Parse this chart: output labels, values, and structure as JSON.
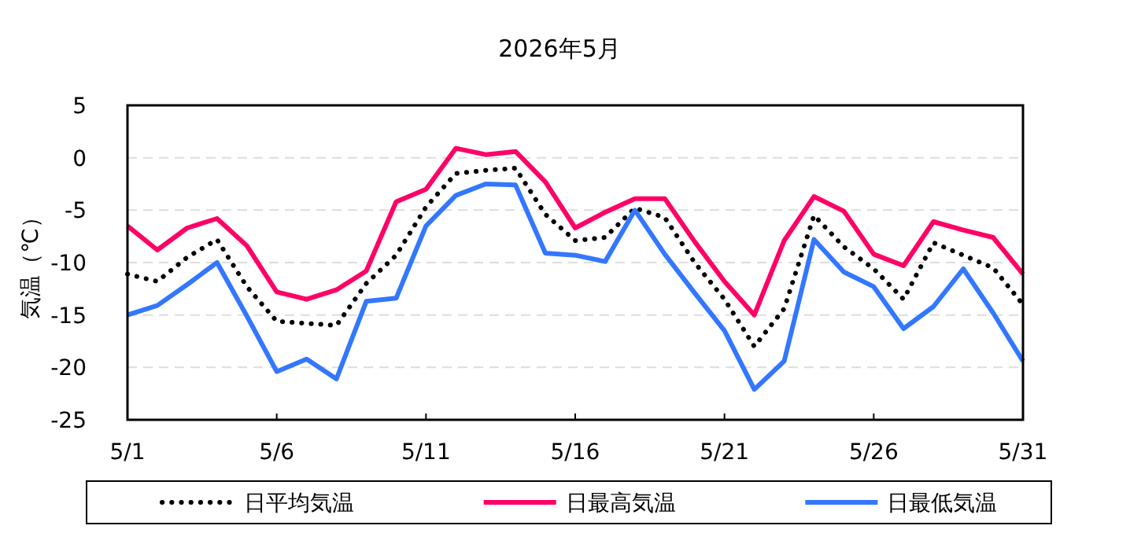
{
  "chart_data": {
    "type": "line",
    "title": "2026年5月",
    "ylabel": "気温（℃）",
    "categories": [
      "5/1",
      null,
      null,
      null,
      null,
      "5/6",
      null,
      null,
      null,
      null,
      "5/11",
      null,
      null,
      null,
      null,
      "5/16",
      null,
      null,
      null,
      null,
      "5/21",
      null,
      null,
      null,
      null,
      "5/26",
      null,
      null,
      null,
      null,
      "5/31"
    ],
    "ylim": [
      -25,
      5
    ],
    "yticks": [
      5,
      0,
      -5,
      -10,
      -15,
      -20,
      -25
    ],
    "grid": "y",
    "legend": "bottom",
    "series": [
      {
        "name": "日平均気温",
        "color": "#000000",
        "line_style": "dotted",
        "values": [
          -11.1,
          -11.8,
          -9.5,
          -7.8,
          -12.3,
          -15.6,
          -15.8,
          -16.0,
          -12.0,
          -9.3,
          -4.7,
          -1.5,
          -1.2,
          -1.0,
          -5.4,
          -7.9,
          -7.6,
          -4.8,
          -5.7,
          -10.0,
          -13.5,
          -18.0,
          -14.4,
          -5.5,
          -8.5,
          -10.6,
          -13.5,
          -8.1,
          -9.3,
          -10.5,
          -14.0
        ]
      },
      {
        "name": "日最高気温",
        "color": "#ff0066",
        "line_style": "solid",
        "values": [
          -6.5,
          -8.8,
          -6.7,
          -5.8,
          -8.4,
          -12.8,
          -13.5,
          -12.6,
          -10.8,
          -4.2,
          -3.0,
          0.9,
          0.3,
          0.6,
          -2.3,
          -6.7,
          -5.2,
          -3.9,
          -3.9,
          -8.0,
          -11.8,
          -15.0,
          -7.9,
          -3.7,
          -5.1,
          -9.2,
          -10.3,
          -6.1,
          -6.9,
          -7.6,
          -11.1
        ]
      },
      {
        "name": "日最低気温",
        "color": "#3377ff",
        "line_style": "solid",
        "values": [
          -15.0,
          -14.1,
          -12.1,
          -10.0,
          -15.1,
          -20.4,
          -19.2,
          -21.1,
          -13.7,
          -13.4,
          -6.5,
          -3.6,
          -2.5,
          -2.6,
          -9.1,
          -9.3,
          -9.9,
          -5.0,
          -9.2,
          -12.9,
          -16.5,
          -22.1,
          -19.4,
          -7.8,
          -10.9,
          -12.3,
          -16.3,
          -14.2,
          -10.6,
          -14.8,
          -19.4
        ]
      }
    ]
  }
}
